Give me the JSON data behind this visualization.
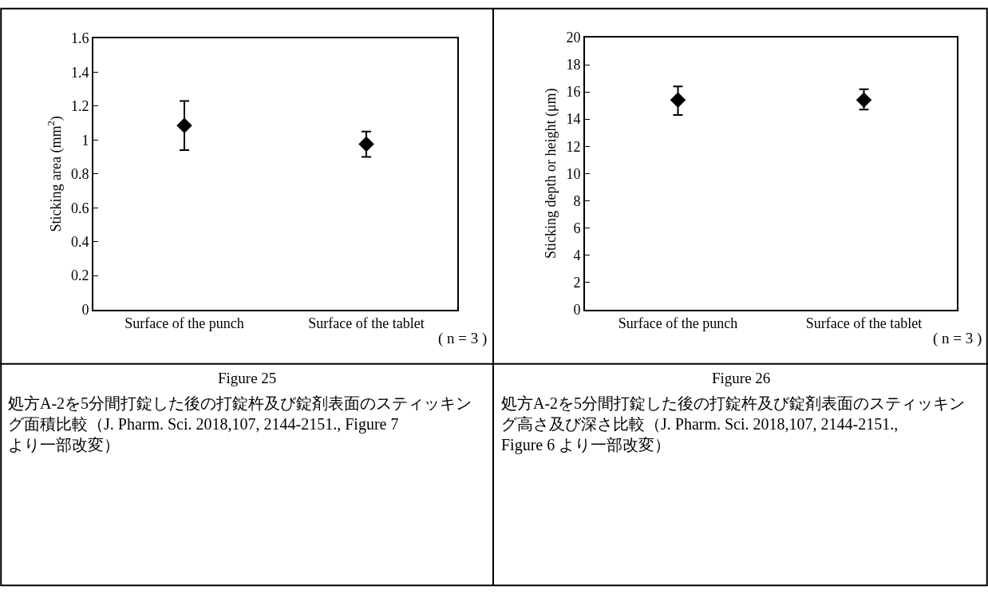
{
  "chart_data": [
    {
      "type": "scatter",
      "ylabel": "Sticking area (mm$^{2}$)",
      "categories": [
        "Surface of the punch",
        "Surface of the tablet"
      ],
      "values": [
        1.085,
        0.975
      ],
      "errors": [
        [
          0.94,
          1.23
        ],
        [
          0.9,
          1.05
        ]
      ],
      "color": "#000000",
      "marker": "diamond",
      "ylim": [
        0,
        1.6
      ],
      "yticks": [
        {
          "value": 0,
          "label": "0"
        },
        0.2,
        0.4,
        0.6,
        0.8,
        {
          "value": 1,
          "label": "1"
        },
        1.2,
        1.4,
        1.6
      ],
      "annotations": [
        "( n = 3 )",
        "Figure 25",
        "処方A-2を5分間打錠した後の打錠杵及び錠剤表面のスティッキング面積比較（J. Pharm. Sci. 2018,107, 2144-2151., Figure 7 より一部改変）"
      ]
    },
    {
      "type": "scatter",
      "ylabel": "Sticking depth or height (μm)",
      "categories": [
        "Surface of the punch",
        "Surface of the tablet"
      ],
      "values": [
        15.4,
        15.4
      ],
      "errors": [
        [
          14.3,
          16.4
        ],
        [
          14.7,
          16.2
        ]
      ],
      "color": "#000000",
      "marker": "diamond",
      "ylim": [
        0,
        20
      ],
      "yticks": [
        0,
        2,
        4,
        6,
        8,
        10,
        12,
        14,
        16,
        18,
        20
      ],
      "annotations": [
        "( n = 3 )",
        "Figure 26",
        "処方A-2を5分間打錠した後の打錠杵及び錠剤表面のスティッキング高さ及び深さ比較（J. Pharm. Sci. 2018,107, 2144-2151., Figure 6 より一部改変）"
      ]
    }
  ]
}
